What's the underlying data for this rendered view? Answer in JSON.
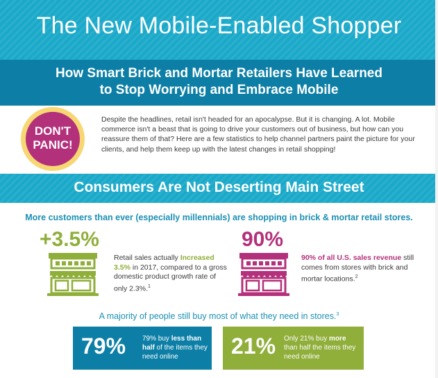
{
  "header": {
    "title": "The New Mobile-Enabled Shopper",
    "subtitle_line1": "How Smart Brick and Mortar Retailers Have Learned",
    "subtitle_line2": "to Stop Worrying and Embrace Mobile"
  },
  "badge": {
    "line1": "DON'T",
    "line2": "PANIC!"
  },
  "intro": {
    "text": "Despite the headlines, retail isn't headed for an apocalypse. But it is changing. A lot. Mobile commerce isn't a beast that is going to drive your customers out of business, but how can you reassure them of that? Here are a few statistics to help channel partners paint the picture for your clients, and help them keep up with the latest changes in retail shopping!"
  },
  "section": {
    "title": "Consumers Are Not Deserting Main Street",
    "lead": "More customers than ever (especially millennials) are shopping in brick & mortar retail stores."
  },
  "stat1": {
    "value": "+3.5%",
    "text_before": "Retail sales actually ",
    "highlight": "Increased 3.5%",
    "text_after": " in 2017, compared to a gross domestic product growth rate of only 2.3%.",
    "footnote": "1"
  },
  "stat2": {
    "value": "90%",
    "highlight": "90% of all U.S. sales revenue",
    "text_after": " still comes from stores with brick and mortar locations.",
    "footnote": "2"
  },
  "majority": {
    "text": "A majority of people still buy most of what they need in stores.",
    "footnote": "3"
  },
  "box1": {
    "value": "79%",
    "text_before": "79% buy ",
    "highlight": "less than half",
    "text_after": " of the items they need online"
  },
  "box2": {
    "value": "21%",
    "text_before": "Only 21% buy ",
    "highlight": "more",
    "text_after": " than half the items they need online"
  },
  "colors": {
    "teal": "#1ba9c9",
    "dark_teal": "#0d7fa6",
    "green": "#8fae3a",
    "magenta": "#b3307b",
    "yellow": "#f7d774"
  },
  "icons": [
    "storefront-icon"
  ]
}
